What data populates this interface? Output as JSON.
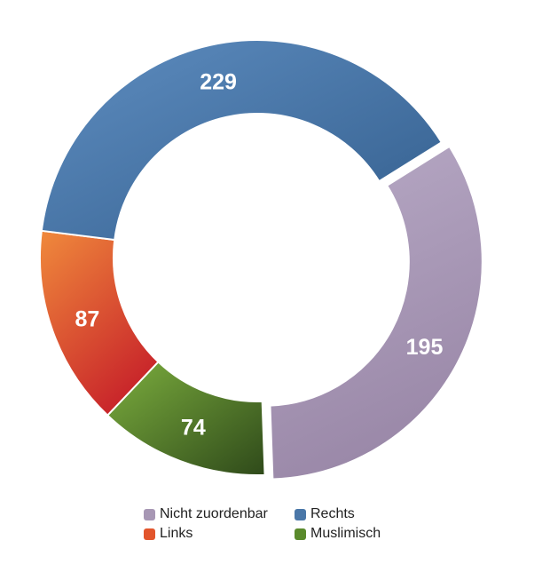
{
  "chart_data": {
    "type": "donut",
    "title": "",
    "categories": [
      "Nicht zuordenbar",
      "Links",
      "Rechts",
      "Muslimisch"
    ],
    "values": [
      195,
      87,
      229,
      74
    ],
    "series": [
      {
        "name": "Nicht zuordenbar",
        "value": 195,
        "color": "#a797b4",
        "exploded": true
      },
      {
        "name": "Muslimisch",
        "value": 74,
        "color": "#5a8a2c",
        "exploded": false
      },
      {
        "name": "Links",
        "value": 87,
        "color": "#e2552c",
        "exploded": false
      },
      {
        "name": "Rechts",
        "value": 229,
        "color": "#4a77a8",
        "exploded": false
      }
    ],
    "start": "12 o'clock-offset",
    "direction": "clockwise",
    "legend": {
      "placement": "bottom",
      "items": [
        {
          "label": "Nicht zuordenbar",
          "color": "#a797b4"
        },
        {
          "label": "Rechts",
          "color": "#4a77a8"
        },
        {
          "label": "Links",
          "color": "#e2552c"
        },
        {
          "label": "Muslimisch",
          "color": "#5a8a2c"
        }
      ]
    }
  }
}
